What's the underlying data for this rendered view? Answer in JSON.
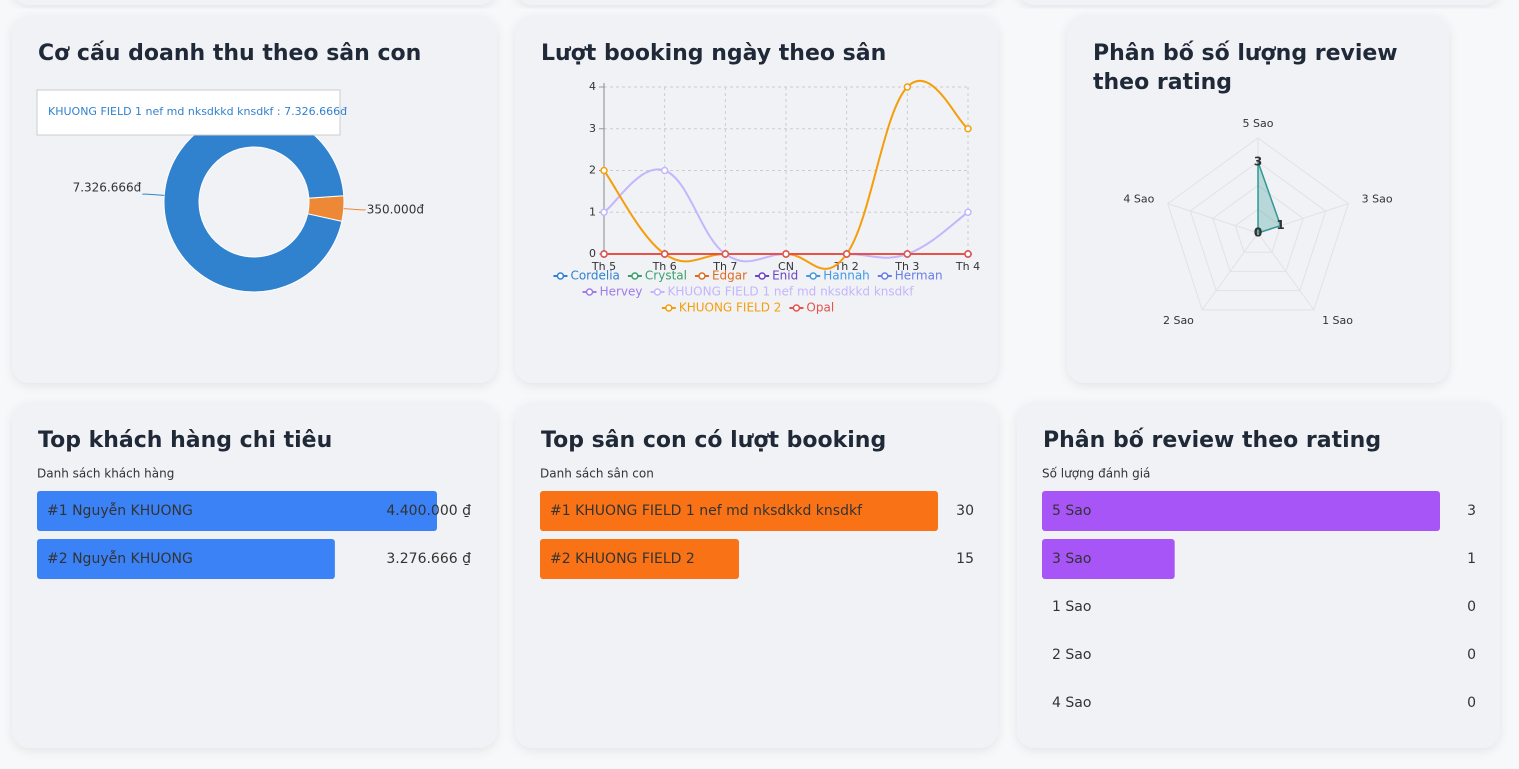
{
  "chart_data": [
    {
      "type": "pie",
      "title": "Cơ cấu doanh thu theo sân con",
      "values": [
        7326666,
        350000
      ],
      "value_labels": [
        "7.326.666đ",
        "350.000đ"
      ],
      "colors": [
        "#3182ce",
        "#ed8936"
      ],
      "donut": true,
      "tooltip": "KHUONG FIELD 1 nef md nksdkkd knsdkf : 7.326.666đ"
    },
    {
      "type": "line",
      "title": "Lượt booking ngày theo sân",
      "categories": [
        "Th 5",
        "Th 6",
        "Th 7",
        "CN",
        "Th 2",
        "Th 3",
        "Th 4"
      ],
      "series": [
        {
          "name": "Cordelia",
          "color": "#3182ce",
          "values": [
            0,
            0,
            0,
            0,
            0,
            0,
            0
          ]
        },
        {
          "name": "Crystal",
          "color": "#38a169",
          "values": [
            0,
            0,
            0,
            0,
            0,
            0,
            0
          ]
        },
        {
          "name": "Edgar",
          "color": "#dd6b20",
          "values": [
            0,
            0,
            0,
            0,
            0,
            0,
            0
          ]
        },
        {
          "name": "Enid",
          "color": "#6b46c1",
          "values": [
            0,
            0,
            0,
            0,
            0,
            0,
            0
          ]
        },
        {
          "name": "Hannah",
          "color": "#4299e1",
          "values": [
            0,
            0,
            0,
            0,
            0,
            0,
            0
          ]
        },
        {
          "name": "Herman",
          "color": "#667eea",
          "values": [
            0,
            0,
            0,
            0,
            0,
            0,
            0
          ]
        },
        {
          "name": "Hervey",
          "color": "#9f7aea",
          "values": [
            0,
            0,
            0,
            0,
            0,
            0,
            0
          ]
        },
        {
          "name": "KHUONG FIELD 1 nef md nksdkkd knsdkf",
          "color": "#c4b5fd",
          "values": [
            1,
            2,
            0,
            0,
            0,
            0,
            1
          ]
        },
        {
          "name": "KHUONG FIELD 2",
          "color": "#f59e0b",
          "values": [
            2,
            0,
            0,
            0,
            0,
            4,
            3
          ]
        },
        {
          "name": "Opal",
          "color": "#e5534b",
          "values": [
            0,
            0,
            0,
            0,
            0,
            0,
            0
          ]
        }
      ],
      "ylim": [
        0,
        4
      ],
      "yticks": [
        0,
        1,
        2,
        3,
        4
      ],
      "grid": true,
      "legend": "bottom"
    },
    {
      "type": "radar",
      "title": "Phân bố số lượng review theo rating",
      "categories": [
        "5 Sao",
        "3 Sao",
        "1 Sao",
        "2 Sao",
        "4 Sao"
      ],
      "values": [
        3,
        1,
        0,
        0,
        0
      ],
      "color": "#319795",
      "rlim": [
        0,
        4
      ],
      "rticks": [
        1,
        2,
        3,
        4
      ]
    },
    {
      "type": "bar",
      "orientation": "horizontal",
      "title": "Top khách hàng chi tiêu",
      "subtitle": "Danh sách khách hàng",
      "categories": [
        "#1 Nguyễn KHUONG",
        "#2 Nguyễn KHUONG"
      ],
      "values": [
        4400000,
        3276666
      ],
      "value_labels": [
        "4.400.000 ₫",
        "3.276.666 ₫"
      ],
      "color": "#3b82f6",
      "xlim": [
        0,
        4400000
      ]
    },
    {
      "type": "bar",
      "orientation": "horizontal",
      "title": "Top sân con có lượt booking",
      "subtitle": "Danh sách sân con",
      "categories": [
        "#1 KHUONG FIELD 1 nef md nksdkkd knsdkf",
        "#2 KHUONG FIELD 2"
      ],
      "values": [
        30,
        15
      ],
      "color": "#f97316",
      "xlim": [
        0,
        30
      ]
    },
    {
      "type": "bar",
      "orientation": "horizontal",
      "title": "Phân bố review theo rating",
      "subtitle": "Số lượng đánh giá",
      "categories": [
        "5 Sao",
        "3 Sao",
        "1 Sao",
        "2 Sao",
        "4 Sao"
      ],
      "values": [
        3,
        1,
        0,
        0,
        0
      ],
      "color": "#a855f7",
      "xlim": [
        0,
        3
      ]
    }
  ]
}
